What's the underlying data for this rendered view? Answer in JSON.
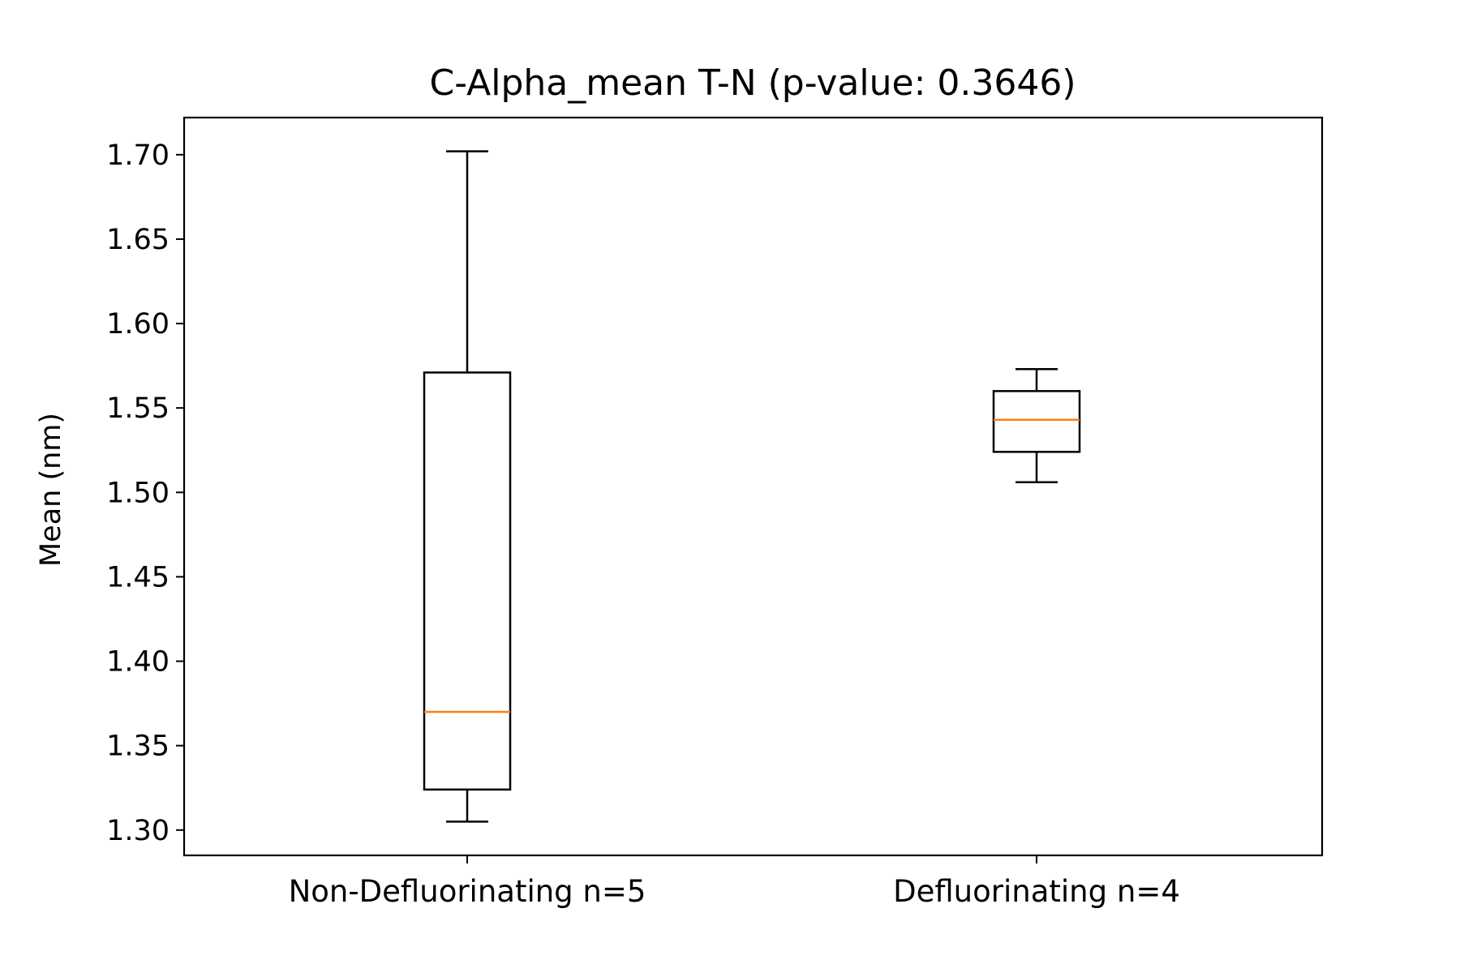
{
  "chart_data": {
    "type": "box",
    "title": "C-Alpha_mean T-N (p-value: 0.3646)",
    "xlabel": "",
    "ylabel": "Mean (nm)",
    "ylim": [
      1.285,
      1.722
    ],
    "yticks": [
      "1.30",
      "1.35",
      "1.40",
      "1.45",
      "1.50",
      "1.55",
      "1.60",
      "1.65",
      "1.70"
    ],
    "grid": false,
    "categories": [
      "Non-Defluorinating n=5",
      "Defluorinating n=4"
    ],
    "boxes": [
      {
        "whisker_low": 1.305,
        "q1": 1.324,
        "median": 1.37,
        "q3": 1.571,
        "whisker_high": 1.702
      },
      {
        "whisker_low": 1.506,
        "q1": 1.524,
        "median": 1.543,
        "q3": 1.56,
        "whisker_high": 1.573
      }
    ],
    "colors": {
      "box": "#000000",
      "median": "#ff7f0e",
      "axes": "#000000"
    }
  }
}
